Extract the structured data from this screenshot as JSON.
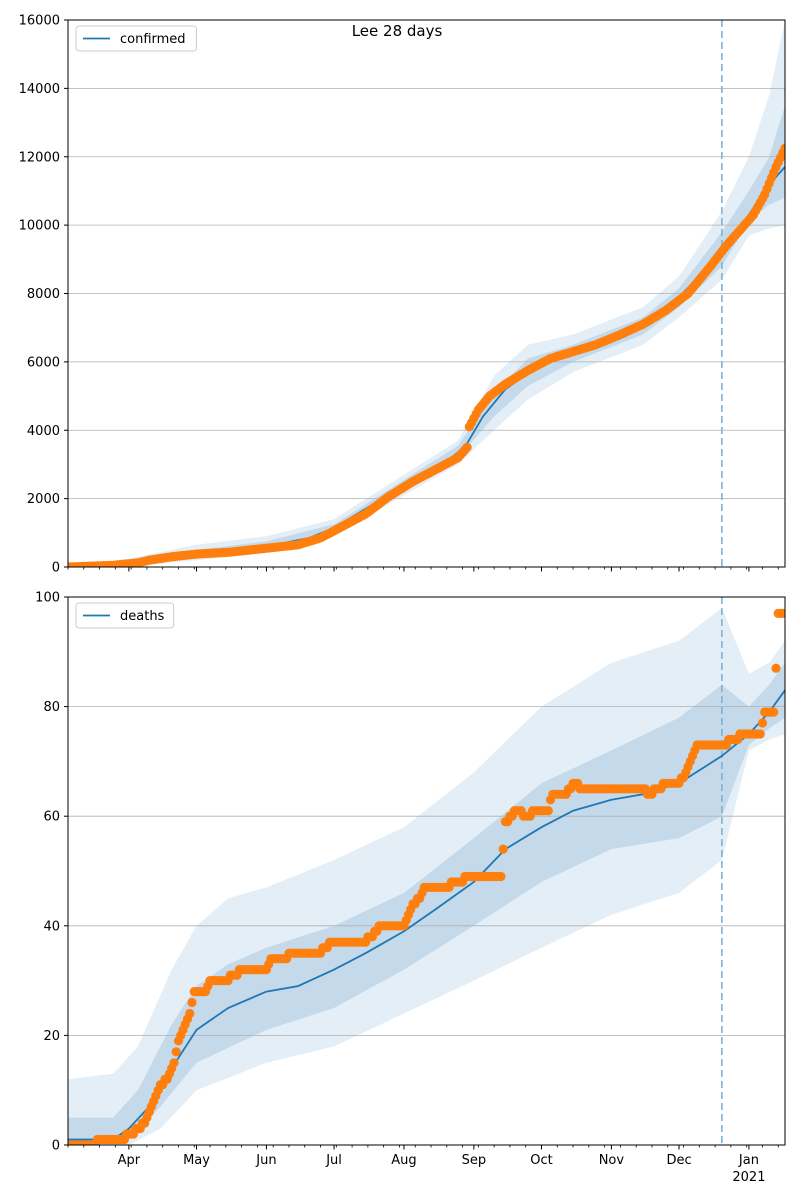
{
  "colors": {
    "median": "#1f77b4",
    "observed": "#ff7f0e",
    "band": "#1f77b4",
    "grid": "#b0b0b0",
    "forecast_line": "#7fb1d3"
  },
  "chart_data": [
    {
      "type": "line",
      "title": "Lee 28 days",
      "legend": "confirmed",
      "legend_position": "top-left",
      "ylim": [
        0,
        16000
      ],
      "yticks": [
        0,
        2000,
        4000,
        6000,
        8000,
        10000,
        12000,
        14000,
        16000
      ],
      "ytick_labels": [
        "0",
        "2000",
        "4000",
        "6000",
        "8000",
        "10000",
        "12000",
        "14000",
        "16000"
      ],
      "xlim": [
        "2020-03-05",
        "2021-01-17"
      ],
      "forecast_start": "2020-12-20",
      "grid": "y",
      "median": [
        [
          "2020-03-05",
          0
        ],
        [
          "2020-04-01",
          100
        ],
        [
          "2020-04-15",
          250
        ],
        [
          "2020-05-01",
          400
        ],
        [
          "2020-06-01",
          600
        ],
        [
          "2020-06-20",
          850
        ],
        [
          "2020-07-01",
          1150
        ],
        [
          "2020-07-15",
          1700
        ],
        [
          "2020-08-01",
          2400
        ],
        [
          "2020-08-15",
          2850
        ],
        [
          "2020-08-28",
          3500
        ],
        [
          "2020-09-05",
          4400
        ],
        [
          "2020-09-15",
          5200
        ],
        [
          "2020-10-01",
          5950
        ],
        [
          "2020-10-15",
          6300
        ],
        [
          "2020-11-01",
          6700
        ],
        [
          "2020-11-15",
          7100
        ],
        [
          "2020-12-01",
          7900
        ],
        [
          "2020-12-10",
          8500
        ],
        [
          "2020-12-20",
          9300
        ],
        [
          "2021-01-01",
          10300
        ],
        [
          "2021-01-10",
          11200
        ],
        [
          "2021-01-17",
          11700
        ]
      ],
      "band_outer": {
        "upper": [
          [
            "2020-03-05",
            0
          ],
          [
            "2020-04-01",
            250
          ],
          [
            "2020-05-01",
            650
          ],
          [
            "2020-06-01",
            900
          ],
          [
            "2020-07-01",
            1400
          ],
          [
            "2020-08-01",
            2700
          ],
          [
            "2020-08-25",
            3700
          ],
          [
            "2020-09-10",
            5600
          ],
          [
            "2020-09-25",
            6500
          ],
          [
            "2020-10-15",
            6800
          ],
          [
            "2020-11-15",
            7600
          ],
          [
            "2020-12-01",
            8500
          ],
          [
            "2020-12-20",
            10400
          ],
          [
            "2021-01-01",
            12000
          ],
          [
            "2021-01-10",
            13800
          ],
          [
            "2021-01-17",
            16000
          ]
        ],
        "lower": [
          [
            "2020-03-05",
            0
          ],
          [
            "2020-04-01",
            20
          ],
          [
            "2020-05-01",
            200
          ],
          [
            "2020-06-01",
            400
          ],
          [
            "2020-07-01",
            900
          ],
          [
            "2020-08-01",
            2100
          ],
          [
            "2020-08-25",
            3000
          ],
          [
            "2020-09-10",
            4000
          ],
          [
            "2020-09-25",
            4900
          ],
          [
            "2020-10-15",
            5700
          ],
          [
            "2020-11-15",
            6500
          ],
          [
            "2020-12-01",
            7300
          ],
          [
            "2020-12-20",
            8400
          ],
          [
            "2021-01-01",
            9700
          ],
          [
            "2021-01-10",
            9900
          ],
          [
            "2021-01-17",
            10000
          ]
        ]
      },
      "band_inner": {
        "upper": [
          [
            "2020-03-05",
            0
          ],
          [
            "2020-04-01",
            150
          ],
          [
            "2020-05-01",
            500
          ],
          [
            "2020-06-01",
            750
          ],
          [
            "2020-07-01",
            1250
          ],
          [
            "2020-08-01",
            2550
          ],
          [
            "2020-08-25",
            3550
          ],
          [
            "2020-09-10",
            5100
          ],
          [
            "2020-09-25",
            6100
          ],
          [
            "2020-10-15",
            6500
          ],
          [
            "2020-11-15",
            7300
          ],
          [
            "2020-12-01",
            8150
          ],
          [
            "2020-12-20",
            9800
          ],
          [
            "2021-01-01",
            11000
          ],
          [
            "2021-01-10",
            12000
          ],
          [
            "2021-01-17",
            13500
          ]
        ],
        "lower": [
          [
            "2020-03-05",
            0
          ],
          [
            "2020-04-01",
            60
          ],
          [
            "2020-05-01",
            300
          ],
          [
            "2020-06-01",
            500
          ],
          [
            "2020-07-01",
            1050
          ],
          [
            "2020-08-01",
            2250
          ],
          [
            "2020-08-25",
            3200
          ],
          [
            "2020-09-10",
            4400
          ],
          [
            "2020-09-25",
            5300
          ],
          [
            "2020-10-15",
            6000
          ],
          [
            "2020-11-15",
            6800
          ],
          [
            "2020-12-01",
            7600
          ],
          [
            "2020-12-20",
            8800
          ],
          [
            "2021-01-01",
            10100
          ],
          [
            "2021-01-10",
            10600
          ],
          [
            "2021-01-17",
            10800
          ]
        ]
      },
      "observed": [
        [
          "2020-03-05",
          0
        ],
        [
          "2020-03-25",
          50
        ],
        [
          "2020-04-05",
          120
        ],
        [
          "2020-04-10",
          200
        ],
        [
          "2020-04-20",
          300
        ],
        [
          "2020-05-01",
          380
        ],
        [
          "2020-05-15",
          430
        ],
        [
          "2020-06-01",
          550
        ],
        [
          "2020-06-15",
          650
        ],
        [
          "2020-06-25",
          850
        ],
        [
          "2020-07-05",
          1200
        ],
        [
          "2020-07-15",
          1550
        ],
        [
          "2020-07-25",
          2050
        ],
        [
          "2020-08-05",
          2500
        ],
        [
          "2020-08-15",
          2850
        ],
        [
          "2020-08-25",
          3200
        ],
        [
          "2020-08-29",
          3500
        ],
        [
          "2020-08-30",
          4100
        ],
        [
          "2020-09-03",
          4600
        ],
        [
          "2020-09-08",
          5000
        ],
        [
          "2020-09-15",
          5350
        ],
        [
          "2020-09-25",
          5750
        ],
        [
          "2020-10-05",
          6100
        ],
        [
          "2020-10-15",
          6300
        ],
        [
          "2020-10-25",
          6500
        ],
        [
          "2020-11-05",
          6800
        ],
        [
          "2020-11-15",
          7100
        ],
        [
          "2020-11-25",
          7500
        ],
        [
          "2020-12-05",
          8000
        ],
        [
          "2020-12-15",
          8800
        ],
        [
          "2020-12-22",
          9400
        ],
        [
          "2020-12-28",
          9850
        ],
        [
          "2021-01-03",
          10300
        ],
        [
          "2021-01-08",
          10900
        ],
        [
          "2021-01-13",
          11700
        ],
        [
          "2021-01-17",
          12250
        ]
      ]
    },
    {
      "type": "line",
      "legend": "deaths",
      "legend_position": "top-left",
      "ylim": [
        0,
        100
      ],
      "yticks": [
        0,
        20,
        40,
        60,
        80,
        100
      ],
      "ytick_labels": [
        "0",
        "20",
        "40",
        "60",
        "80",
        "100"
      ],
      "xlim": [
        "2020-03-05",
        "2021-01-17"
      ],
      "xticks": [
        "2020-04-01",
        "2020-05-01",
        "2020-06-01",
        "2020-07-01",
        "2020-08-01",
        "2020-09-01",
        "2020-10-01",
        "2020-11-01",
        "2020-12-01",
        "2021-01-01"
      ],
      "xtick_labels": [
        "Apr",
        "May",
        "Jun",
        "Jul",
        "Aug",
        "Sep",
        "Oct",
        "Nov",
        "Dec",
        "Jan"
      ],
      "year_label": "2021",
      "forecast_start": "2020-12-20",
      "grid": "y",
      "median": [
        [
          "2020-03-05",
          1
        ],
        [
          "2020-03-25",
          1
        ],
        [
          "2020-04-01",
          3
        ],
        [
          "2020-04-10",
          7
        ],
        [
          "2020-04-20",
          14
        ],
        [
          "2020-05-01",
          21
        ],
        [
          "2020-05-15",
          25
        ],
        [
          "2020-06-01",
          28
        ],
        [
          "2020-06-15",
          29
        ],
        [
          "2020-07-01",
          32
        ],
        [
          "2020-07-15",
          35
        ],
        [
          "2020-08-01",
          39
        ],
        [
          "2020-08-15",
          43
        ],
        [
          "2020-09-01",
          48
        ],
        [
          "2020-09-15",
          54
        ],
        [
          "2020-10-01",
          58
        ],
        [
          "2020-10-15",
          61
        ],
        [
          "2020-11-01",
          63
        ],
        [
          "2020-11-15",
          64
        ],
        [
          "2020-12-01",
          66
        ],
        [
          "2020-12-20",
          71
        ],
        [
          "2021-01-01",
          75
        ],
        [
          "2021-01-10",
          79
        ],
        [
          "2021-01-17",
          83
        ]
      ],
      "band_outer": {
        "upper": [
          [
            "2020-03-05",
            12
          ],
          [
            "2020-03-25",
            13
          ],
          [
            "2020-04-05",
            18
          ],
          [
            "2020-04-20",
            32
          ],
          [
            "2020-05-01",
            40
          ],
          [
            "2020-05-15",
            45
          ],
          [
            "2020-06-01",
            47
          ],
          [
            "2020-07-01",
            52
          ],
          [
            "2020-08-01",
            58
          ],
          [
            "2020-09-01",
            68
          ],
          [
            "2020-10-01",
            80
          ],
          [
            "2020-11-01",
            88
          ],
          [
            "2020-12-01",
            92
          ],
          [
            "2020-12-20",
            98
          ],
          [
            "2021-01-01",
            86
          ],
          [
            "2021-01-10",
            88
          ],
          [
            "2021-01-17",
            92
          ]
        ],
        "lower": [
          [
            "2020-03-05",
            0
          ],
          [
            "2020-04-01",
            0
          ],
          [
            "2020-04-15",
            3
          ],
          [
            "2020-05-01",
            10
          ],
          [
            "2020-06-01",
            15
          ],
          [
            "2020-07-01",
            18
          ],
          [
            "2020-08-01",
            24
          ],
          [
            "2020-09-01",
            30
          ],
          [
            "2020-10-01",
            36
          ],
          [
            "2020-11-01",
            42
          ],
          [
            "2020-12-01",
            46
          ],
          [
            "2020-12-20",
            52
          ],
          [
            "2021-01-01",
            72
          ],
          [
            "2021-01-10",
            74
          ],
          [
            "2021-01-17",
            75
          ]
        ]
      },
      "band_inner": {
        "upper": [
          [
            "2020-03-05",
            5
          ],
          [
            "2020-03-25",
            5
          ],
          [
            "2020-04-05",
            10
          ],
          [
            "2020-04-20",
            22
          ],
          [
            "2020-05-01",
            29
          ],
          [
            "2020-05-15",
            33
          ],
          [
            "2020-06-01",
            36
          ],
          [
            "2020-07-01",
            40
          ],
          [
            "2020-08-01",
            46
          ],
          [
            "2020-09-01",
            56
          ],
          [
            "2020-10-01",
            66
          ],
          [
            "2020-11-01",
            72
          ],
          [
            "2020-12-01",
            78
          ],
          [
            "2020-12-20",
            84
          ],
          [
            "2021-01-01",
            80
          ],
          [
            "2021-01-10",
            84
          ],
          [
            "2021-01-17",
            88
          ]
        ],
        "lower": [
          [
            "2020-03-05",
            0
          ],
          [
            "2020-04-01",
            1
          ],
          [
            "2020-04-15",
            7
          ],
          [
            "2020-05-01",
            15
          ],
          [
            "2020-06-01",
            21
          ],
          [
            "2020-07-01",
            25
          ],
          [
            "2020-08-01",
            32
          ],
          [
            "2020-09-01",
            40
          ],
          [
            "2020-10-01",
            48
          ],
          [
            "2020-11-01",
            54
          ],
          [
            "2020-12-01",
            56
          ],
          [
            "2020-12-20",
            60
          ],
          [
            "2021-01-01",
            73
          ],
          [
            "2021-01-10",
            76
          ],
          [
            "2021-01-17",
            78
          ]
        ]
      },
      "observed": [
        [
          "2020-03-05",
          0
        ],
        [
          "2020-03-30",
          1
        ],
        [
          "2020-04-01",
          2
        ],
        [
          "2020-04-06",
          3
        ],
        [
          "2020-04-09",
          5
        ],
        [
          "2020-04-12",
          8
        ],
        [
          "2020-04-15",
          11
        ],
        [
          "2020-04-18",
          12
        ],
        [
          "2020-04-21",
          15
        ],
        [
          "2020-04-23",
          19
        ],
        [
          "2020-04-26",
          22
        ],
        [
          "2020-04-28",
          24
        ],
        [
          "2020-04-30",
          28
        ],
        [
          "2020-05-05",
          28
        ],
        [
          "2020-05-07",
          30
        ],
        [
          "2020-05-15",
          30
        ],
        [
          "2020-05-17",
          31
        ],
        [
          "2020-05-22",
          32
        ],
        [
          "2020-06-01",
          32
        ],
        [
          "2020-06-03",
          34
        ],
        [
          "2020-06-10",
          34
        ],
        [
          "2020-06-12",
          35
        ],
        [
          "2020-06-25",
          35
        ],
        [
          "2020-06-27",
          36
        ],
        [
          "2020-07-01",
          37
        ],
        [
          "2020-07-15",
          37
        ],
        [
          "2020-07-17",
          38
        ],
        [
          "2020-07-22",
          40
        ],
        [
          "2020-08-01",
          40
        ],
        [
          "2020-08-03",
          42
        ],
        [
          "2020-08-05",
          44
        ],
        [
          "2020-08-08",
          45
        ],
        [
          "2020-08-10",
          47
        ],
        [
          "2020-08-20",
          47
        ],
        [
          "2020-08-24",
          48
        ],
        [
          "2020-08-31",
          49
        ],
        [
          "2020-09-13",
          49
        ],
        [
          "2020-09-15",
          59
        ],
        [
          "2020-09-20",
          61
        ],
        [
          "2020-09-25",
          60
        ],
        [
          "2020-09-28",
          61
        ],
        [
          "2020-10-04",
          61
        ],
        [
          "2020-10-06",
          64
        ],
        [
          "2020-10-12",
          64
        ],
        [
          "2020-10-15",
          66
        ],
        [
          "2020-10-20",
          65
        ],
        [
          "2020-11-01",
          65
        ],
        [
          "2020-11-15",
          65
        ],
        [
          "2020-11-18",
          64
        ],
        [
          "2020-11-22",
          65
        ],
        [
          "2020-11-25",
          66
        ],
        [
          "2020-12-01",
          66
        ],
        [
          "2020-12-04",
          68
        ],
        [
          "2020-12-07",
          71
        ],
        [
          "2020-12-09",
          73
        ],
        [
          "2020-12-20",
          73
        ],
        [
          "2020-12-25",
          74
        ],
        [
          "2020-12-31",
          75
        ],
        [
          "2021-01-06",
          75
        ],
        [
          "2021-01-08",
          79
        ],
        [
          "2021-01-12",
          79
        ],
        [
          "2021-01-13",
          87
        ],
        [
          "2021-01-14",
          97
        ],
        [
          "2021-01-16",
          97
        ]
      ]
    }
  ]
}
